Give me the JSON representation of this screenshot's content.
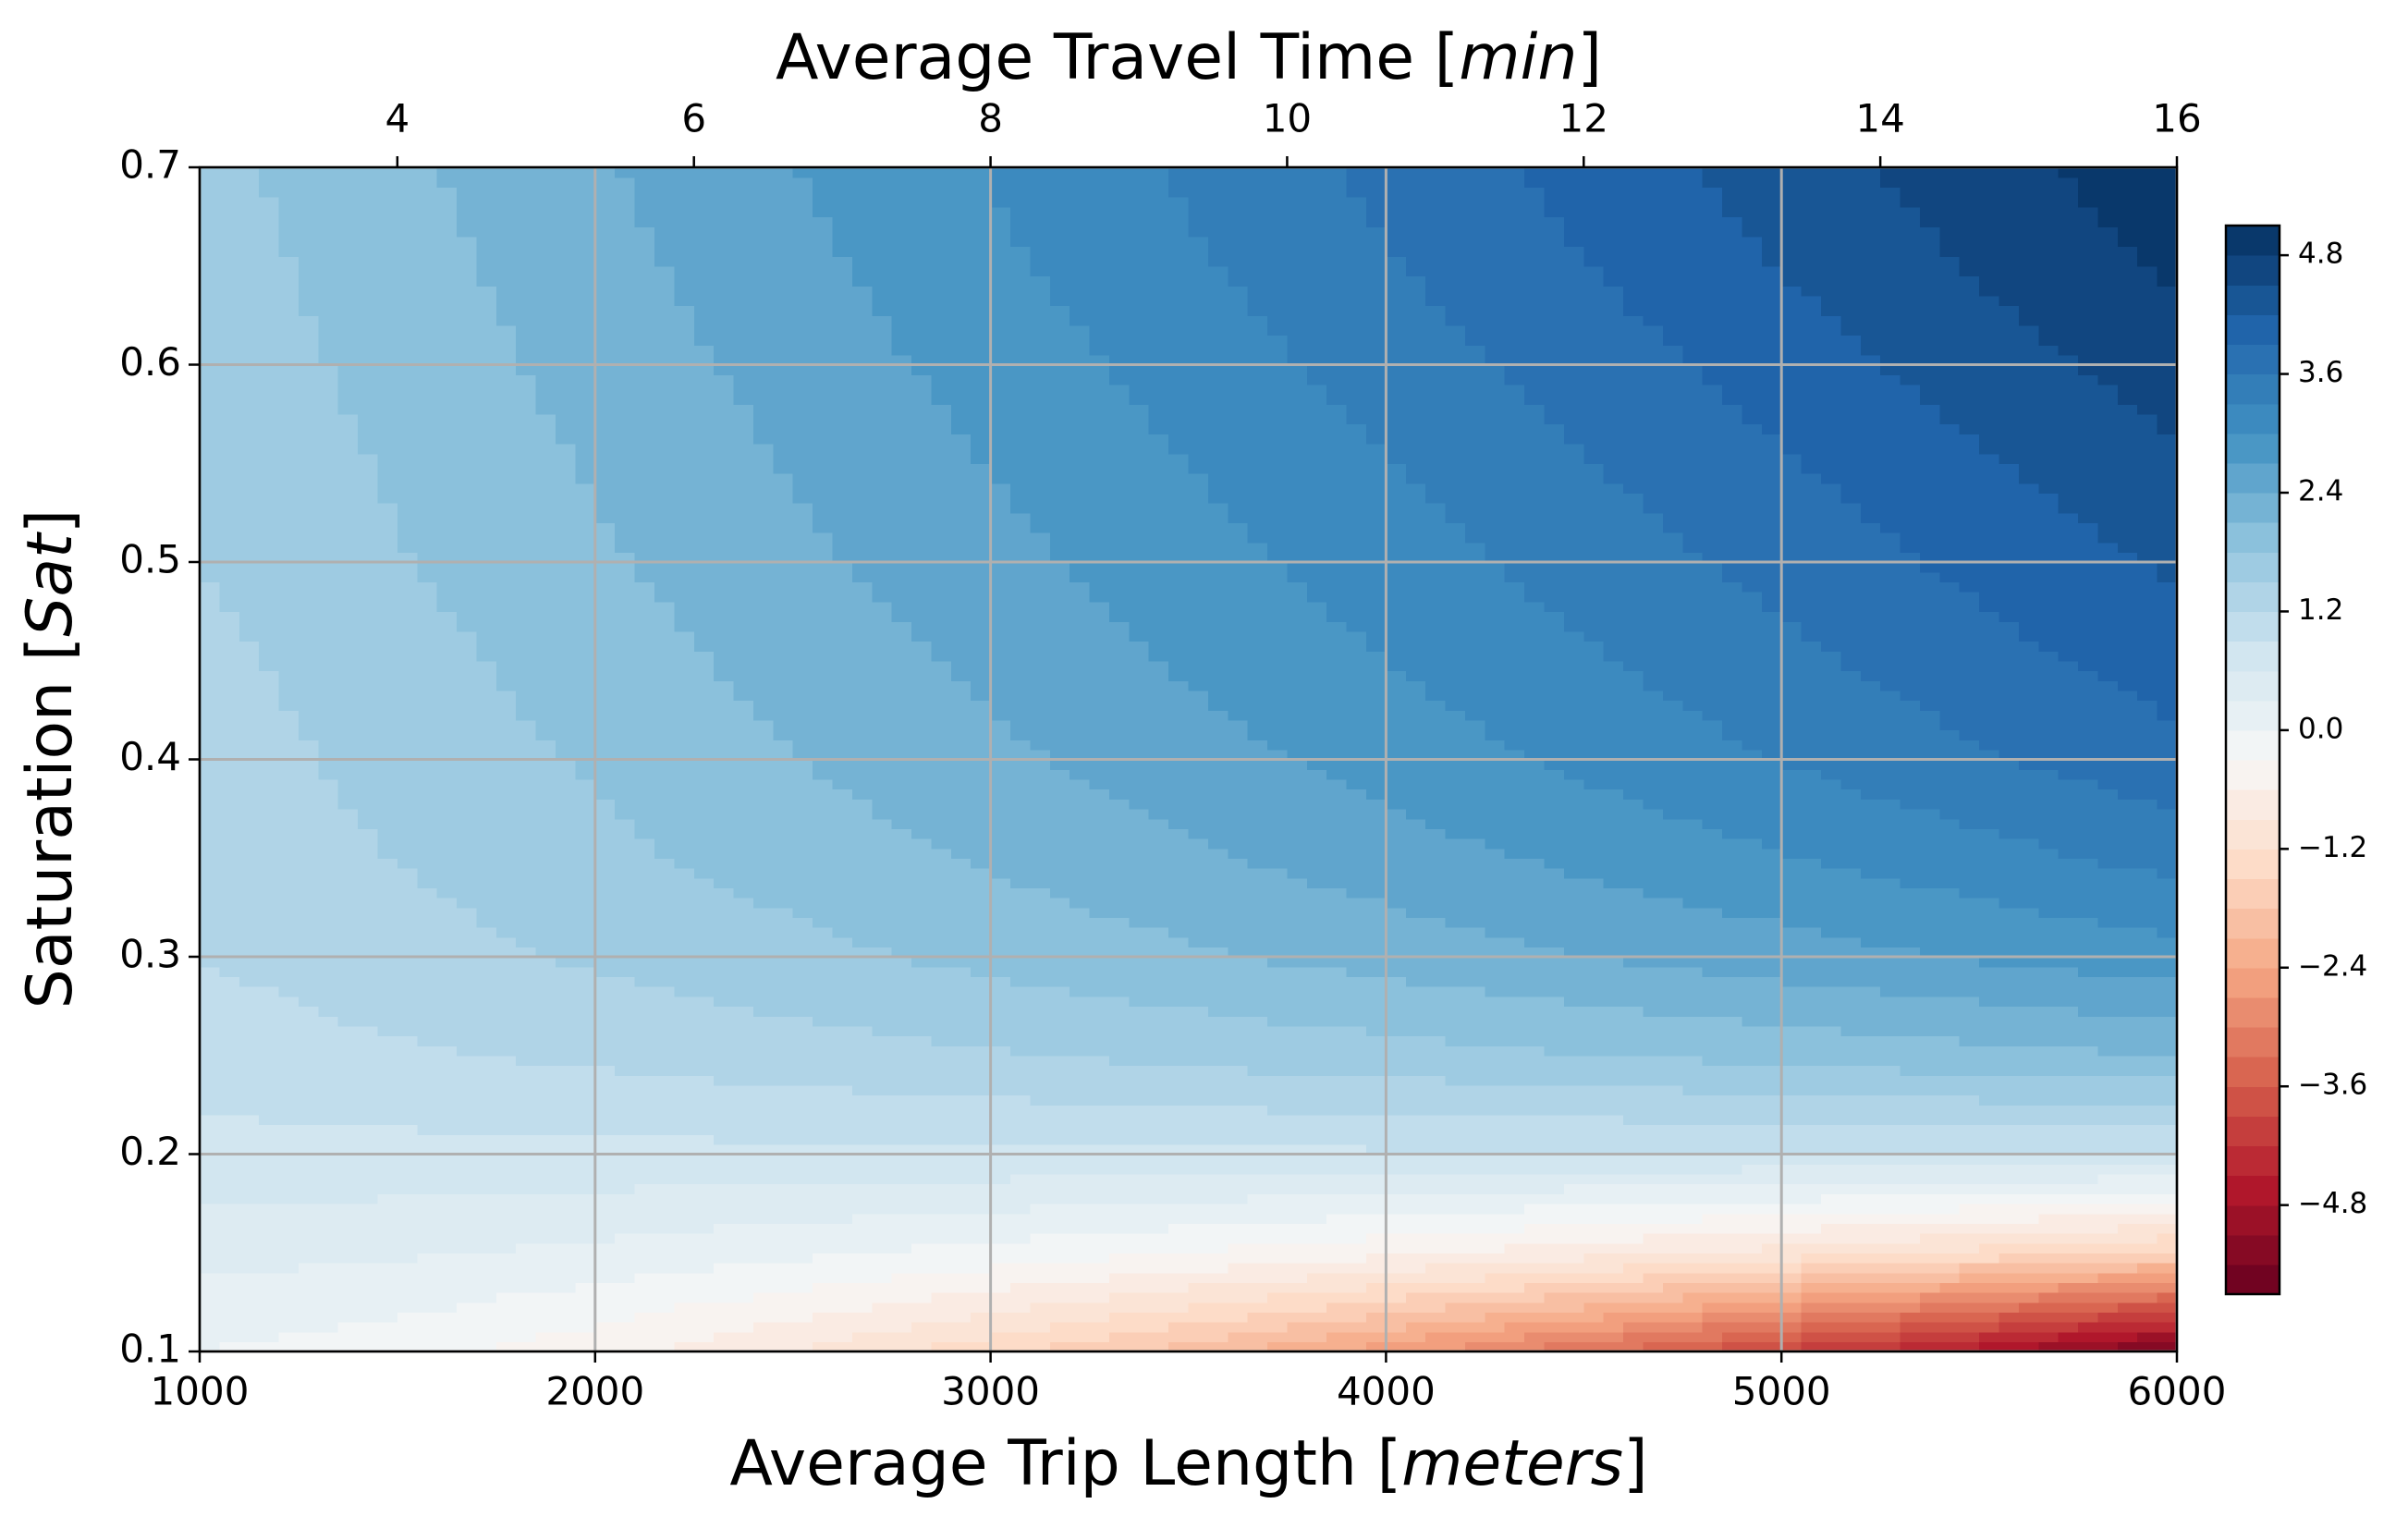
{
  "chart_data": {
    "type": "contourf",
    "xlabel": [
      "Average Trip Length [",
      "meters",
      "]"
    ],
    "ylabel": [
      "Saturation [",
      "Sat",
      "]"
    ],
    "x2label": [
      "Average Travel Time [",
      "min",
      "]"
    ],
    "x": [
      1000,
      1500,
      2000,
      2500,
      3000,
      3500,
      4000,
      4500,
      5000,
      5500,
      6000
    ],
    "y": [
      0.1,
      0.15,
      0.2,
      0.25,
      0.3,
      0.35,
      0.4,
      0.45,
      0.5,
      0.55,
      0.6,
      0.65,
      0.7
    ],
    "z": [
      [
        0.0,
        -0.17,
        -0.49,
        -0.9,
        -1.39,
        -1.95,
        -2.56,
        -3.22,
        -3.94,
        -4.7,
        -5.5
      ],
      [
        0.4,
        0.34,
        0.22,
        0.07,
        -0.11,
        -0.31,
        -0.53,
        -0.77,
        -1.03,
        -1.31,
        -1.6
      ],
      [
        0.8,
        0.81,
        0.82,
        0.83,
        0.84,
        0.85,
        0.86,
        0.87,
        0.88,
        0.89,
        0.9
      ],
      [
        1.05,
        1.16,
        1.26,
        1.37,
        1.47,
        1.58,
        1.68,
        1.79,
        1.89,
        2.0,
        2.1
      ],
      [
        1.2,
        1.37,
        1.54,
        1.71,
        1.88,
        2.05,
        2.22,
        2.39,
        2.56,
        2.73,
        2.9
      ],
      [
        1.3,
        1.51,
        1.72,
        1.93,
        2.14,
        2.35,
        2.56,
        2.77,
        2.98,
        3.19,
        3.4
      ],
      [
        1.35,
        1.6,
        1.84,
        2.09,
        2.33,
        2.58,
        2.82,
        3.07,
        3.31,
        3.56,
        3.8
      ],
      [
        1.42,
        1.68,
        1.95,
        2.21,
        2.47,
        2.74,
        3.0,
        3.26,
        3.52,
        3.79,
        4.05
      ],
      [
        1.5,
        1.78,
        2.05,
        2.33,
        2.6,
        2.88,
        3.15,
        3.43,
        3.7,
        3.98,
        4.25
      ],
      [
        1.55,
        1.84,
        2.13,
        2.42,
        2.71,
        3.0,
        3.29,
        3.58,
        3.87,
        4.16,
        4.45
      ],
      [
        1.6,
        1.91,
        2.21,
        2.52,
        2.82,
        3.13,
        3.43,
        3.74,
        4.04,
        4.35,
        4.65
      ],
      [
        1.65,
        1.97,
        2.29,
        2.61,
        2.93,
        3.25,
        3.57,
        3.89,
        4.21,
        4.53,
        4.85
      ],
      [
        1.7,
        2.03,
        2.36,
        2.69,
        3.02,
        3.35,
        3.68,
        4.01,
        4.34,
        4.67,
        5.0
      ]
    ],
    "xlim": [
      1000,
      6000
    ],
    "xticks": [
      1000,
      2000,
      3000,
      4000,
      5000,
      6000
    ],
    "ylim": [
      0.1,
      0.7
    ],
    "yticks": [
      0.1,
      0.2,
      0.3,
      0.4,
      0.5,
      0.6,
      0.7
    ],
    "x2lim": [
      2.667,
      16
    ],
    "x2ticks": [
      4,
      6,
      8,
      10,
      12,
      14,
      16
    ],
    "zlim": [
      -5.7,
      5.1
    ],
    "zstep": 0.3,
    "zticks": [
      {
        "value": -4.8,
        "label": "−4.8"
      },
      {
        "value": -3.6,
        "label": "−3.6"
      },
      {
        "value": -2.4,
        "label": "−2.4"
      },
      {
        "value": -1.2,
        "label": "−1.2"
      },
      {
        "value": 0,
        "label": "0.0"
      },
      1.2,
      2.4,
      3.6,
      4.8
    ],
    "cmap": [
      "#67001f",
      "#b2182b",
      "#d6604d",
      "#f4a582",
      "#fddbc7",
      "#f7f7f7",
      "#d1e5f0",
      "#92c5de",
      "#4393c3",
      "#2166ac",
      "#053061"
    ],
    "grid": true,
    "grid_color": "#b0b0b0"
  }
}
